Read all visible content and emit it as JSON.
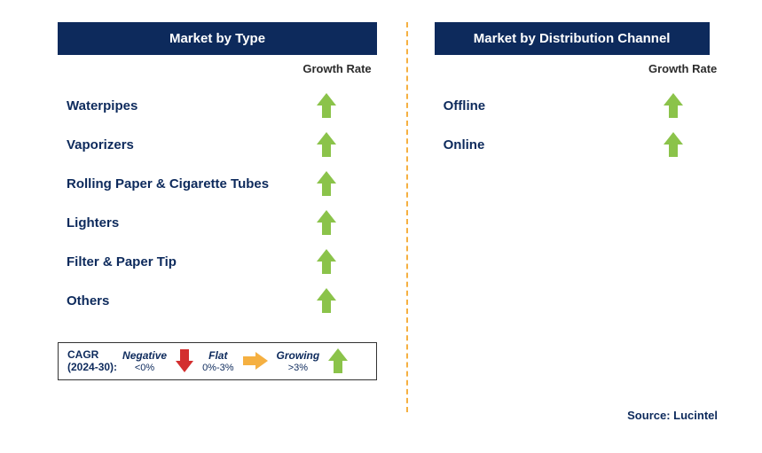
{
  "colors": {
    "header_bg": "#0d2a5c",
    "header_text": "#ffffff",
    "item_text": "#0d2a5c",
    "growth_label": "#2c2c2c",
    "arrow_green": "#8bc34a",
    "arrow_red": "#d32f2f",
    "arrow_yellow": "#f5b041",
    "divider": "#f5b041",
    "legend_text": "#0d2a5c",
    "source_text": "#0d2a5c",
    "background": "#ffffff"
  },
  "left": {
    "header": "Market by Type",
    "growth_label": "Growth Rate",
    "items": [
      {
        "label": "Waterpipes",
        "trend": "growing"
      },
      {
        "label": "Vaporizers",
        "trend": "growing"
      },
      {
        "label": "Rolling Paper & Cigarette Tubes",
        "trend": "growing"
      },
      {
        "label": "Lighters",
        "trend": "growing"
      },
      {
        "label": "Filter & Paper Tip",
        "trend": "growing"
      },
      {
        "label": "Others",
        "trend": "growing"
      }
    ]
  },
  "right": {
    "header": "Market by Distribution Channel",
    "growth_label": "Growth Rate",
    "items": [
      {
        "label": "Offline",
        "trend": "growing"
      },
      {
        "label": "Online",
        "trend": "growing"
      }
    ]
  },
  "legend": {
    "cagr_line1": "CAGR",
    "cagr_line2": "(2024-30):",
    "negative": {
      "label": "Negative",
      "range": "<0%"
    },
    "flat": {
      "label": "Flat",
      "range": "0%-3%"
    },
    "growing": {
      "label": "Growing",
      "range": ">3%"
    }
  },
  "source": "Source: Lucintel"
}
